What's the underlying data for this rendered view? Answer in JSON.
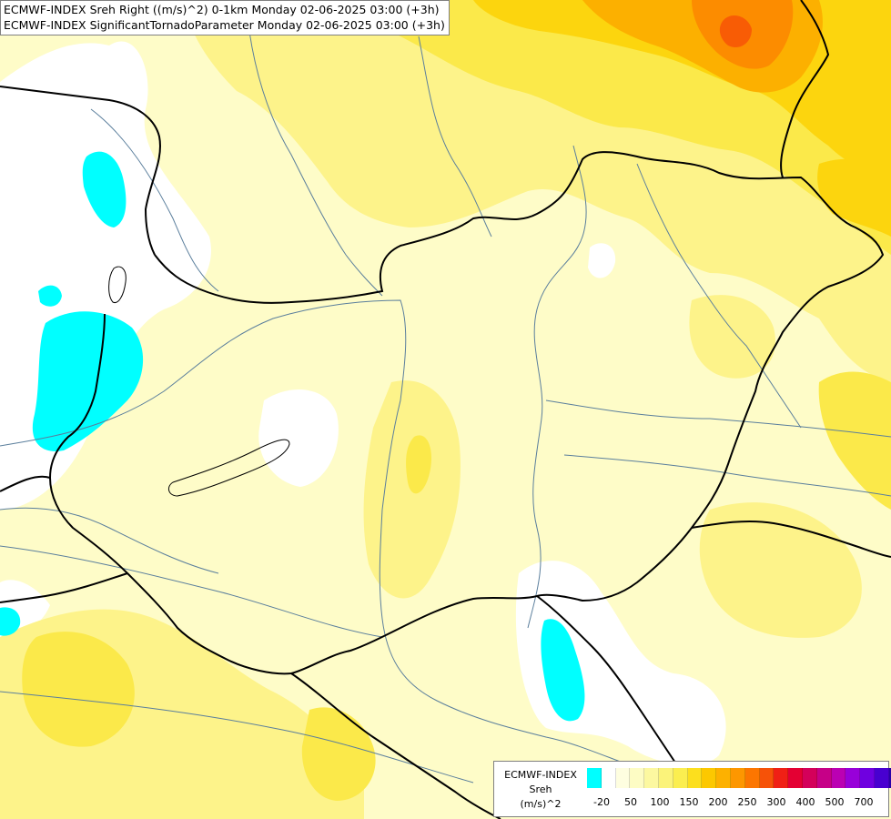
{
  "title": {
    "line1": "ECMWF-INDEX Sreh Right ((m/s)^2) 0-1km Monday 02-06-2025 03:00 (+3h)",
    "line2": "ECMWF-INDEX SignificantTornadoParameter Monday 02-06-2025 03:00 (+3h)"
  },
  "legend": {
    "line1": "ECMWF-INDEX",
    "line2": "Sreh",
    "line3": "(m/s)^2",
    "ticks": [
      "-20",
      "50",
      "100",
      "150",
      "200",
      "250",
      "300",
      "400",
      "500",
      "700"
    ],
    "colors": [
      "#00ffff",
      "#ffffff",
      "#fefee0",
      "#fdfcc4",
      "#fcf8a0",
      "#fbf37a",
      "#fbee50",
      "#fcdf1e",
      "#fcc800",
      "#fdb100",
      "#fd9700",
      "#fc7600",
      "#f65208",
      "#f02015",
      "#e40033",
      "#d4005a",
      "#c60087",
      "#bb00b3",
      "#9800d9",
      "#6f00e0",
      "#4800d0",
      "#2a00a8",
      "#12006a"
    ]
  },
  "map": {
    "region": "Hungary and surroundings",
    "colors": {
      "background": "#fefcc8",
      "pale": "#fdfbd0",
      "light_yellow": "#fdf38a",
      "yellow": "#fbe94a",
      "gold": "#fcd50e",
      "orange": "#fcb000",
      "deep_orange": "#fc8c00",
      "red_orange": "#f85c05",
      "white_zone": "#ffffff",
      "cyan_zone": "#00ffff",
      "border": "#000000",
      "river": "#5a7e9c"
    }
  }
}
